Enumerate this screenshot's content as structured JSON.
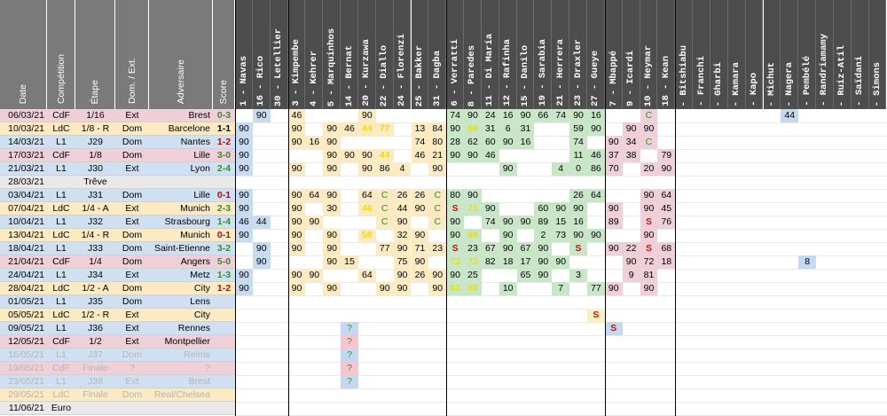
{
  "headers": {
    "date": "Date",
    "competition": "Compétition",
    "etape": "Étape",
    "dom_ext": "Dom. / Ext.",
    "adversaire": "Adversaire",
    "score": "Score"
  },
  "players": [
    "1 - Navas",
    "16 - Rico",
    "30 - Letellier",
    "3 - Kimpembe",
    "4 - Kehrer",
    "5 - Marquinhos",
    "14 - Bernat",
    "20 - Kurzawa",
    "22 - Diallo",
    "24 - Florenzi",
    "25 - Bakker",
    "31 - Dagba",
    "6 - Verratti",
    "8 - Paredes",
    "11 - Di María",
    "12 - Rafinha",
    "15 - Danilo",
    "19 - Sarabia",
    "21 - Herrera",
    "23 - Draxler",
    "27 - Gueye",
    "7 - Mbappé",
    "9 - Icardi",
    "10 - Neymar",
    "18 - Kean",
    "- Bitshiabu",
    "- Franchi",
    "- Gharbi",
    "- Kamara",
    "- Kapo",
    "- Michut",
    "- Nagera",
    "- Pembélé",
    "- Randriamamy",
    "- Ruiz-Atil",
    "- Saïdani",
    "- Simons"
  ],
  "matches": [
    {
      "date": "06/03/21",
      "comp": "CdF",
      "etape": "1/16",
      "dom": "Ext",
      "adv": "Brest",
      "score": "0-3",
      "res": "win",
      "type": "cdf",
      "p": {
        "1": "90",
        "3": "46",
        "7": "90",
        "12": "74",
        "13": "90",
        "14": "24",
        "15": "16",
        "16": "90",
        "17": "66",
        "18": "74",
        "19": "90",
        "20": "16",
        "23": "C",
        "31": "44"
      }
    },
    {
      "date": "10/03/21",
      "comp": "LdC",
      "etape": "1/8 - R",
      "dom": "Dom",
      "adv": "Barcelone",
      "score": "1-1",
      "res": "draw",
      "type": "ldc",
      "p": {
        "0": "90",
        "3": "90",
        "5": "90",
        "6": "46",
        "7": "44",
        "8": "77",
        "10": "13",
        "11": "84",
        "12": "90",
        "13": "80",
        "14": "31",
        "15": "6",
        "16": "31",
        "19": "59",
        "20": "90",
        "22": "90",
        "23": "90"
      }
    },
    {
      "date": "14/03/21",
      "comp": "L1",
      "etape": "J29",
      "dom": "Dom",
      "adv": "Nantes",
      "score": "1-2",
      "res": "loss",
      "type": "l1",
      "p": {
        "0": "90",
        "3": "90",
        "4": "16",
        "5": "90",
        "10": "74",
        "11": "80",
        "12": "28",
        "13": "62",
        "14": "60",
        "15": "90",
        "16": "16",
        "19": "74",
        "21": "90",
        "22": "34",
        "23": "C"
      }
    },
    {
      "date": "17/03/21",
      "comp": "CdF",
      "etape": "1/8",
      "dom": "Dom",
      "adv": "Lille",
      "score": "3-0",
      "res": "win",
      "type": "cdf",
      "p": {
        "0": "90",
        "5": "90",
        "6": "90",
        "7": "90",
        "8": "44",
        "10": "46",
        "11": "21",
        "12": "90",
        "13": "90",
        "14": "46",
        "19": "11",
        "20": "46",
        "21": "37",
        "22": "38",
        "24": "79"
      }
    },
    {
      "date": "21/03/21",
      "comp": "L1",
      "etape": "J30",
      "dom": "Ext",
      "adv": "Lyon",
      "score": "2-4",
      "res": "win",
      "type": "l1",
      "p": {
        "0": "90",
        "3": "90",
        "5": "90",
        "7": "90",
        "8": "86",
        "9": "4",
        "11": "90",
        "15": "90",
        "18": "4",
        "19": "0",
        "20": "86",
        "21": "70",
        "23": "20",
        "24": "90"
      }
    },
    {
      "date": "28/03/21",
      "comp": "",
      "etape": "Trêve",
      "dom": "",
      "adv": "",
      "score": "",
      "res": "",
      "type": "treve",
      "p": {}
    },
    {
      "date": "03/04/21",
      "comp": "L1",
      "etape": "J31",
      "dom": "Dom",
      "adv": "Lille",
      "score": "0-1",
      "res": "loss",
      "type": "l1",
      "p": {
        "0": "90",
        "3": "90",
        "4": "64",
        "5": "90",
        "7": "64",
        "8": "C",
        "9": "26",
        "10": "26",
        "11": "C",
        "12": "80",
        "13": "90",
        "19": "26",
        "20": "64",
        "23": "90",
        "24": "64"
      }
    },
    {
      "date": "07/04/21",
      "comp": "LdC",
      "etape": "1/4 - A",
      "dom": "Ext",
      "adv": "Munich",
      "score": "2-3",
      "res": "win",
      "type": "ldc",
      "p": {
        "0": "90",
        "3": "90",
        "5": "30",
        "7": "46",
        "8": "C",
        "9": "44",
        "10": "90",
        "11": "C",
        "12": "S",
        "13": "71",
        "14": "90",
        "17": "60",
        "18": "90",
        "19": "90",
        "21": "90",
        "23": "90",
        "24": "45"
      }
    },
    {
      "date": "10/04/21",
      "comp": "L1",
      "etape": "J32",
      "dom": "Ext",
      "adv": "Strasbourg",
      "score": "1-4",
      "res": "win",
      "type": "l1",
      "p": {
        "0": "46",
        "1": "44",
        "3": "90",
        "4": "90",
        "8": "C",
        "9": "90",
        "11": "C",
        "12": "90",
        "14": "74",
        "15": "90",
        "16": "90",
        "17": "89",
        "18": "15",
        "19": "16",
        "21": "89",
        "23": "S",
        "24": "76"
      }
    },
    {
      "date": "13/04/21",
      "comp": "LdC",
      "etape": "1/4 - R",
      "dom": "Dom",
      "adv": "Munich",
      "score": "0-1",
      "res": "loss",
      "type": "ldc",
      "p": {
        "0": "90",
        "3": "90",
        "5": "90",
        "7": "58",
        "9": "32",
        "10": "90",
        "12": "90",
        "13": "88",
        "15": "90",
        "17": "2",
        "18": "73",
        "19": "90",
        "20": "90",
        "23": "90"
      }
    },
    {
      "date": "18/04/21",
      "comp": "L1",
      "etape": "J33",
      "dom": "Dom",
      "adv": "Saint-Etienne",
      "score": "3-2",
      "res": "win",
      "type": "l1",
      "p": {
        "1": "90",
        "3": "90",
        "5": "90",
        "8": "77",
        "9": "90",
        "10": "71",
        "11": "23",
        "12": "S",
        "13": "23",
        "14": "67",
        "15": "90",
        "16": "67",
        "17": "90",
        "19": "S",
        "21": "90",
        "22": "22",
        "23": "S",
        "24": "68"
      }
    },
    {
      "date": "21/04/21",
      "comp": "CdF",
      "etape": "1/4",
      "dom": "Dom",
      "adv": "Angers",
      "score": "5-0",
      "res": "win",
      "type": "cdf",
      "p": {
        "1": "90",
        "5": "90",
        "6": "15",
        "9": "75",
        "10": "90",
        "12": "73",
        "13": "72",
        "14": "82",
        "15": "18",
        "16": "17",
        "17": "90",
        "18": "90",
        "22": "90",
        "23": "72",
        "24": "18",
        "32": "8"
      }
    },
    {
      "date": "24/04/21",
      "comp": "L1",
      "etape": "J34",
      "dom": "Ext",
      "adv": "Metz",
      "score": "1-3",
      "res": "win",
      "type": "l1",
      "p": {
        "0": "90",
        "3": "90",
        "4": "90",
        "7": "64",
        "9": "90",
        "10": "26",
        "11": "90",
        "12": "90",
        "13": "25",
        "16": "65",
        "17": "90",
        "19": "3",
        "22": "9",
        "23": "81"
      }
    },
    {
      "date": "28/04/21",
      "comp": "LdC",
      "etape": "1/2 - A",
      "dom": "Dom",
      "adv": "City",
      "score": "1-2",
      "res": "loss",
      "type": "ldc",
      "p": {
        "0": "90",
        "3": "90",
        "5": "90",
        "8": "90",
        "9": "90",
        "11": "90",
        "12": "83",
        "13": "80",
        "15": "10",
        "18": "7",
        "20": "77",
        "21": "90",
        "23": "90"
      }
    },
    {
      "date": "01/05/21",
      "comp": "L1",
      "etape": "J35",
      "dom": "Dom",
      "adv": "Lens",
      "score": "",
      "res": "",
      "type": "future",
      "p": {}
    },
    {
      "date": "05/05/21",
      "comp": "LdC",
      "etape": "1/2 - R",
      "dom": "Ext",
      "adv": "City",
      "score": "",
      "res": "",
      "type": "future",
      "p": {
        "20": "S"
      }
    },
    {
      "date": "09/05/21",
      "comp": "L1",
      "etape": "J36",
      "dom": "Ext",
      "adv": "Rennes",
      "score": "",
      "res": "",
      "type": "future",
      "p": {
        "6": "?",
        "21": "S"
      }
    },
    {
      "date": "12/05/21",
      "comp": "CdF",
      "etape": "1/2",
      "dom": "Ext",
      "adv": "Montpellier",
      "score": "",
      "res": "",
      "type": "future",
      "p": {
        "6": "?"
      }
    },
    {
      "date": "16/05/21",
      "comp": "L1",
      "etape": "J37",
      "dom": "Dom",
      "adv": "Reims",
      "score": "",
      "res": "",
      "type": "future faded",
      "p": {
        "6": "?"
      }
    },
    {
      "date": "19/05/21",
      "comp": "CdF",
      "etape": "Finale",
      "dom": "?",
      "adv": "?",
      "score": "",
      "res": "",
      "type": "future faded",
      "p": {
        "6": "?"
      }
    },
    {
      "date": "23/05/21",
      "comp": "L1",
      "etape": "J38",
      "dom": "Ext",
      "adv": "Brest",
      "score": "",
      "res": "",
      "type": "future faded",
      "p": {
        "6": "?"
      }
    },
    {
      "date": "29/05/21",
      "comp": "LdC",
      "etape": "Finale",
      "dom": "Dom",
      "adv": "Real/Chelsea",
      "score": "",
      "res": "",
      "type": "future faded",
      "p": {}
    },
    {
      "date": "11/06/21",
      "comp": "Euro",
      "etape": "",
      "dom": "",
      "adv": "",
      "score": "",
      "res": "",
      "type": "euro",
      "p": {}
    }
  ],
  "colors": {
    "gk": "#c9dbf0",
    "def": "#fbeac2",
    "mid": "#c9e6c9",
    "att": "#efd0d9",
    "youth": "#ffffff",
    "highlight_blue": "#c5d8f1",
    "highlight_green": "#d4ebd0",
    "highlight_pink": "#f3c6d0",
    "highlight_purple": "#dcd3ee",
    "highlight_yellow": "#fbefc4"
  }
}
